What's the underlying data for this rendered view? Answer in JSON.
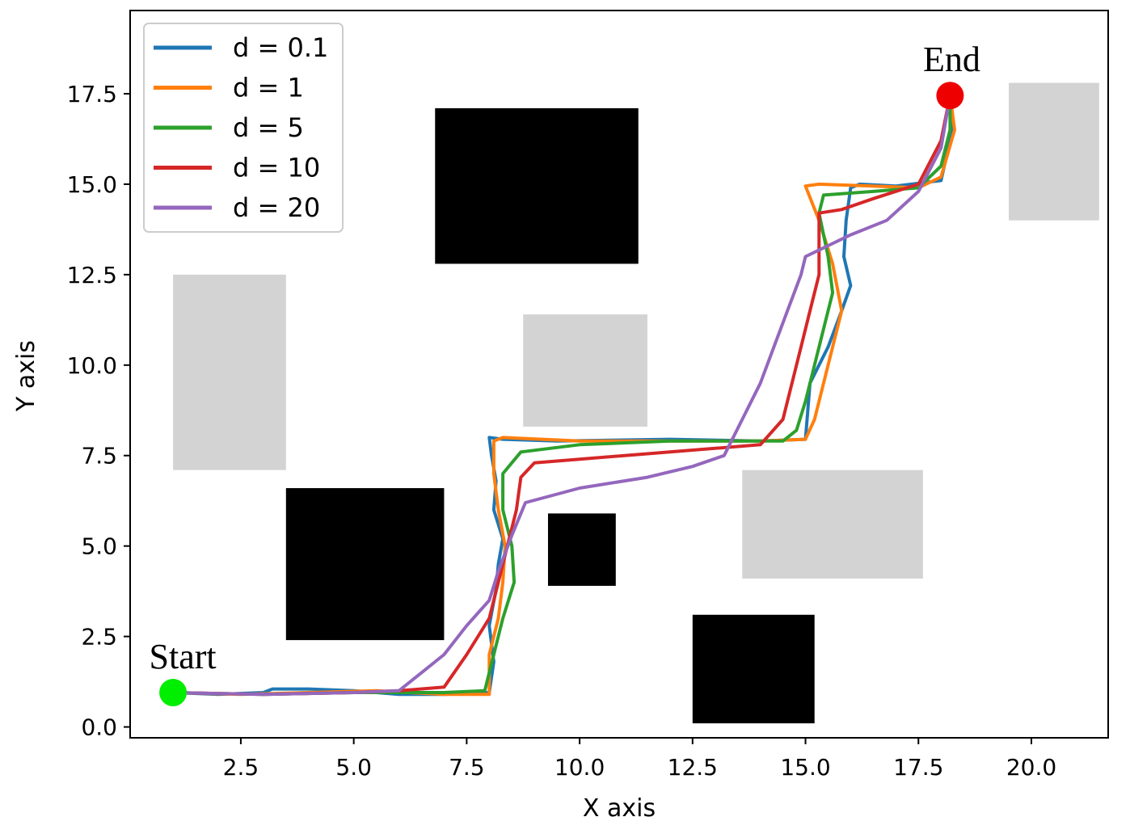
{
  "chart_data": {
    "type": "line",
    "title": "",
    "xlabel": "X axis",
    "ylabel": "Y axis",
    "xlim": [
      0.05,
      21.7
    ],
    "ylim": [
      -0.3,
      19.8
    ],
    "xticks": [
      "2.5",
      "5.0",
      "7.5",
      "10.0",
      "12.5",
      "15.0",
      "17.5",
      "20.0"
    ],
    "yticks": [
      "0.0",
      "2.5",
      "5.0",
      "7.5",
      "10.0",
      "12.5",
      "15.0",
      "17.5"
    ],
    "grid": false,
    "legend_position": "top-left",
    "obstacles_black": [
      {
        "x0": 6.8,
        "x1": 11.3,
        "y0": 12.8,
        "y1": 17.1
      },
      {
        "x0": 3.5,
        "x1": 7.0,
        "y0": 2.4,
        "y1": 6.6
      },
      {
        "x0": 9.3,
        "x1": 10.8,
        "y0": 3.9,
        "y1": 5.9
      },
      {
        "x0": 12.5,
        "x1": 15.2,
        "y0": 0.1,
        "y1": 3.1
      }
    ],
    "obstacles_gray": [
      {
        "x0": 1.0,
        "x1": 3.5,
        "y0": 7.1,
        "y1": 12.5
      },
      {
        "x0": 8.75,
        "x1": 11.5,
        "y0": 8.3,
        "y1": 11.4
      },
      {
        "x0": 13.6,
        "x1": 17.6,
        "y0": 4.1,
        "y1": 7.1
      },
      {
        "x0": 19.5,
        "x1": 21.5,
        "y0": 14.0,
        "y1": 17.8
      }
    ],
    "start": {
      "label": "Start",
      "x": 1.0,
      "y": 0.95,
      "color": "#00ee00"
    },
    "end": {
      "label": "End",
      "x": 18.2,
      "y": 17.45,
      "color": "#ee0000"
    },
    "series": [
      {
        "name": "d = 0.1",
        "color": "#1f77b4",
        "x": [
          1.0,
          2.0,
          3.0,
          3.2,
          4.0,
          5.0,
          6.0,
          7.0,
          8.0,
          8.1,
          8.0,
          8.15,
          8.2,
          8.3,
          8.1,
          8.15,
          8.05,
          8.0,
          8.3,
          9.5,
          12.0,
          14.0,
          15.0,
          15.1,
          15.5,
          15.8,
          16.0,
          15.85,
          15.9,
          16.0,
          16.2,
          17.0,
          18.0,
          18.25,
          18.2
        ],
        "y": [
          0.95,
          0.9,
          0.95,
          1.05,
          1.05,
          1.0,
          0.9,
          0.9,
          0.95,
          1.8,
          2.8,
          3.8,
          4.5,
          5.2,
          6.0,
          6.8,
          7.5,
          8.0,
          7.95,
          7.9,
          7.95,
          7.9,
          7.95,
          9.5,
          10.5,
          11.5,
          12.2,
          13.0,
          14.0,
          14.9,
          15.0,
          14.95,
          15.1,
          16.5,
          17.45
        ]
      },
      {
        "name": "d = 1",
        "color": "#ff7f0e",
        "x": [
          1.0,
          2.5,
          4.0,
          5.5,
          7.0,
          8.0,
          8.0,
          8.2,
          8.3,
          8.35,
          8.2,
          8.1,
          8.1,
          8.3,
          10.0,
          12.0,
          14.0,
          15.0,
          15.2,
          15.4,
          15.6,
          15.8,
          15.6,
          15.3,
          15.0,
          15.3,
          16.5,
          17.5,
          18.0,
          18.3,
          18.2
        ],
        "y": [
          0.95,
          0.9,
          0.95,
          1.0,
          0.9,
          0.9,
          2.0,
          3.0,
          4.0,
          5.0,
          6.0,
          7.0,
          7.9,
          8.0,
          7.9,
          7.9,
          7.9,
          7.95,
          8.5,
          9.5,
          10.5,
          11.5,
          12.8,
          14.0,
          14.95,
          15.0,
          14.95,
          14.9,
          15.2,
          16.5,
          17.45
        ]
      },
      {
        "name": "d = 5",
        "color": "#2ca02c",
        "x": [
          1.0,
          3.0,
          5.0,
          7.0,
          7.9,
          8.1,
          8.3,
          8.55,
          8.5,
          8.3,
          8.3,
          8.7,
          10.0,
          12.0,
          14.5,
          14.8,
          15.0,
          15.2,
          15.4,
          15.6,
          15.5,
          15.3,
          15.4,
          16.5,
          17.5,
          18.0,
          18.2,
          18.2
        ],
        "y": [
          0.95,
          0.9,
          0.95,
          0.95,
          1.0,
          2.0,
          3.0,
          4.0,
          5.0,
          6.0,
          7.0,
          7.6,
          7.8,
          7.9,
          7.9,
          8.2,
          9.0,
          10.0,
          11.0,
          12.0,
          13.0,
          14.2,
          14.7,
          14.8,
          14.9,
          15.5,
          16.5,
          17.45
        ]
      },
      {
        "name": "d = 10",
        "color": "#d62728",
        "x": [
          1.0,
          3.0,
          5.0,
          6.0,
          7.0,
          7.5,
          8.0,
          8.2,
          8.4,
          8.6,
          8.7,
          9.0,
          10.0,
          11.0,
          12.0,
          13.0,
          14.0,
          14.5,
          14.7,
          14.9,
          15.1,
          15.3,
          15.3,
          15.8,
          16.5,
          17.5,
          18.0,
          18.2
        ],
        "y": [
          0.95,
          0.9,
          0.95,
          1.0,
          1.1,
          2.0,
          3.0,
          4.0,
          5.0,
          6.0,
          6.9,
          7.3,
          7.4,
          7.5,
          7.6,
          7.7,
          7.8,
          8.5,
          9.5,
          10.5,
          11.5,
          12.5,
          14.2,
          14.3,
          14.6,
          15.0,
          16.2,
          17.45
        ]
      },
      {
        "name": "d = 20",
        "color": "#9467bd",
        "x": [
          1.0,
          3.0,
          5.0,
          6.0,
          6.5,
          7.0,
          7.5,
          8.0,
          8.2,
          8.5,
          8.8,
          10.0,
          11.5,
          12.5,
          13.2,
          13.6,
          14.0,
          14.3,
          14.6,
          14.9,
          15.0,
          15.5,
          16.0,
          16.8,
          17.5,
          18.0,
          18.2
        ],
        "y": [
          0.95,
          0.9,
          0.95,
          1.0,
          1.5,
          2.0,
          2.8,
          3.5,
          4.3,
          5.3,
          6.2,
          6.6,
          6.9,
          7.2,
          7.5,
          8.5,
          9.5,
          10.5,
          11.5,
          12.5,
          13.0,
          13.3,
          13.6,
          14.0,
          14.8,
          16.0,
          17.45
        ]
      }
    ]
  }
}
